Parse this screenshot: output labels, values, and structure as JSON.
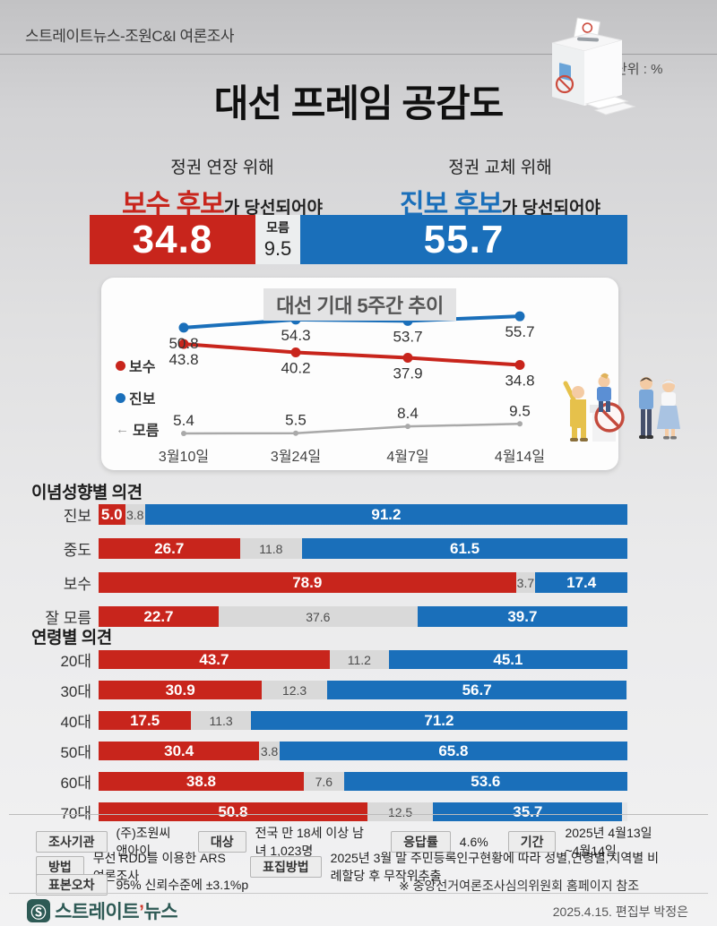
{
  "header": {
    "source_line": "스트레이트뉴스-조원C&I 여론조사",
    "unit_label": "단위 : %",
    "title": "대선 프레임 공감도"
  },
  "framing": {
    "left_context": "정권 연장 위해",
    "left_candidate": "보수 후보",
    "left_suffix": "가 당선되어야",
    "left_value": "34.8",
    "middle_label": "모름",
    "middle_value": "9.5",
    "right_context": "정권 교체 위해",
    "right_candidate": "진보 후보",
    "right_suffix": "가 당선되어야",
    "right_value": "55.7"
  },
  "trend_title": "대선 기대 5주간 추이",
  "sections": {
    "ideology_title": "이념성향별 의견",
    "age_title": "연령별 의견"
  },
  "colors": {
    "conservative": "#c8251c",
    "progressive": "#1a6fba",
    "unknown_seg": "#d9d9d9",
    "unknown_line": "#a9a9a9"
  },
  "chart_data": [
    {
      "type": "bar",
      "subtype": "headline-stacked",
      "title": "대선 프레임 공감도",
      "unit": "%",
      "categories": [
        "보수 후보(정권 연장 위해)",
        "모름",
        "진보 후보(정권 교체 위해)"
      ],
      "values": [
        34.8,
        9.5,
        55.7
      ]
    },
    {
      "type": "line",
      "title": "대선 기대 5주간 추이",
      "x": [
        "3월10일",
        "3월24일",
        "4월7일",
        "4월14일"
      ],
      "series": [
        {
          "name": "보수",
          "color": "#c8251c",
          "values": [
            43.8,
            40.2,
            37.9,
            34.8
          ]
        },
        {
          "name": "진보",
          "color": "#1a6fba",
          "values": [
            50.8,
            54.3,
            53.7,
            55.7
          ]
        },
        {
          "name": "모름",
          "color": "#a9a9a9",
          "values": [
            5.4,
            5.5,
            8.4,
            9.5
          ]
        }
      ],
      "ylim": [
        0,
        65
      ],
      "grid": false,
      "legend_position": "left",
      "legend": [
        "보수",
        "진보",
        "모름"
      ]
    },
    {
      "type": "bar",
      "subtype": "stacked-horizontal",
      "title": "이념성향별 의견",
      "categories": [
        "진보",
        "중도",
        "보수",
        "잘 모름"
      ],
      "series": [
        {
          "name": "보수 후보",
          "color": "#c8251c",
          "values": [
            5.0,
            26.7,
            78.9,
            22.7
          ]
        },
        {
          "name": "모름",
          "color": "#d9d9d9",
          "values": [
            3.8,
            11.8,
            3.7,
            37.6
          ]
        },
        {
          "name": "진보 후보",
          "color": "#1a6fba",
          "values": [
            91.2,
            61.5,
            17.4,
            39.7
          ]
        }
      ],
      "xlim": [
        0,
        100
      ]
    },
    {
      "type": "bar",
      "subtype": "stacked-horizontal",
      "title": "연령별 의견",
      "categories": [
        "20대",
        "30대",
        "40대",
        "50대",
        "60대",
        "70대"
      ],
      "series": [
        {
          "name": "보수 후보",
          "color": "#c8251c",
          "values": [
            43.7,
            30.9,
            17.5,
            30.4,
            38.8,
            50.8
          ]
        },
        {
          "name": "모름",
          "color": "#d9d9d9",
          "values": [
            11.2,
            12.3,
            11.3,
            3.8,
            7.6,
            12.5
          ]
        },
        {
          "name": "진보 후보",
          "color": "#1a6fba",
          "values": [
            45.1,
            56.7,
            71.2,
            65.8,
            53.6,
            35.7
          ]
        }
      ],
      "xlim": [
        0,
        100
      ]
    }
  ],
  "footer": {
    "rows": [
      {
        "pairs": [
          {
            "label": "조사기관",
            "value": "(주)조원씨앤아이"
          },
          {
            "label": "대상",
            "value": "전국 만 18세 이상 남녀 1,023명"
          },
          {
            "label": "응답률",
            "value": "4.6%"
          },
          {
            "label": "기간",
            "value": "2025년 4월13일~4월14일"
          }
        ]
      },
      {
        "pairs": [
          {
            "label": "방법",
            "value": "무선 RDD를 이용한 ARS 여론조사"
          },
          {
            "label": "표집방법",
            "value": "2025년 3월 말 주민등록인구현황에 따라 성별,연령별,지역별 비례할당 후 무작위추출"
          }
        ]
      },
      {
        "pairs": [
          {
            "label": "표본오차",
            "value": "95% 신뢰수준에 ±3.1%p"
          }
        ],
        "note": "※ 중앙선거여론조사심의위원회 홈페이지 참조"
      }
    ],
    "brand": {
      "mark": "Ⓢ",
      "name_main": "스트레이트",
      "apostrophe": "’",
      "name_sub": "뉴스"
    },
    "credit": "2025.4.15. 편집부 박정은"
  }
}
